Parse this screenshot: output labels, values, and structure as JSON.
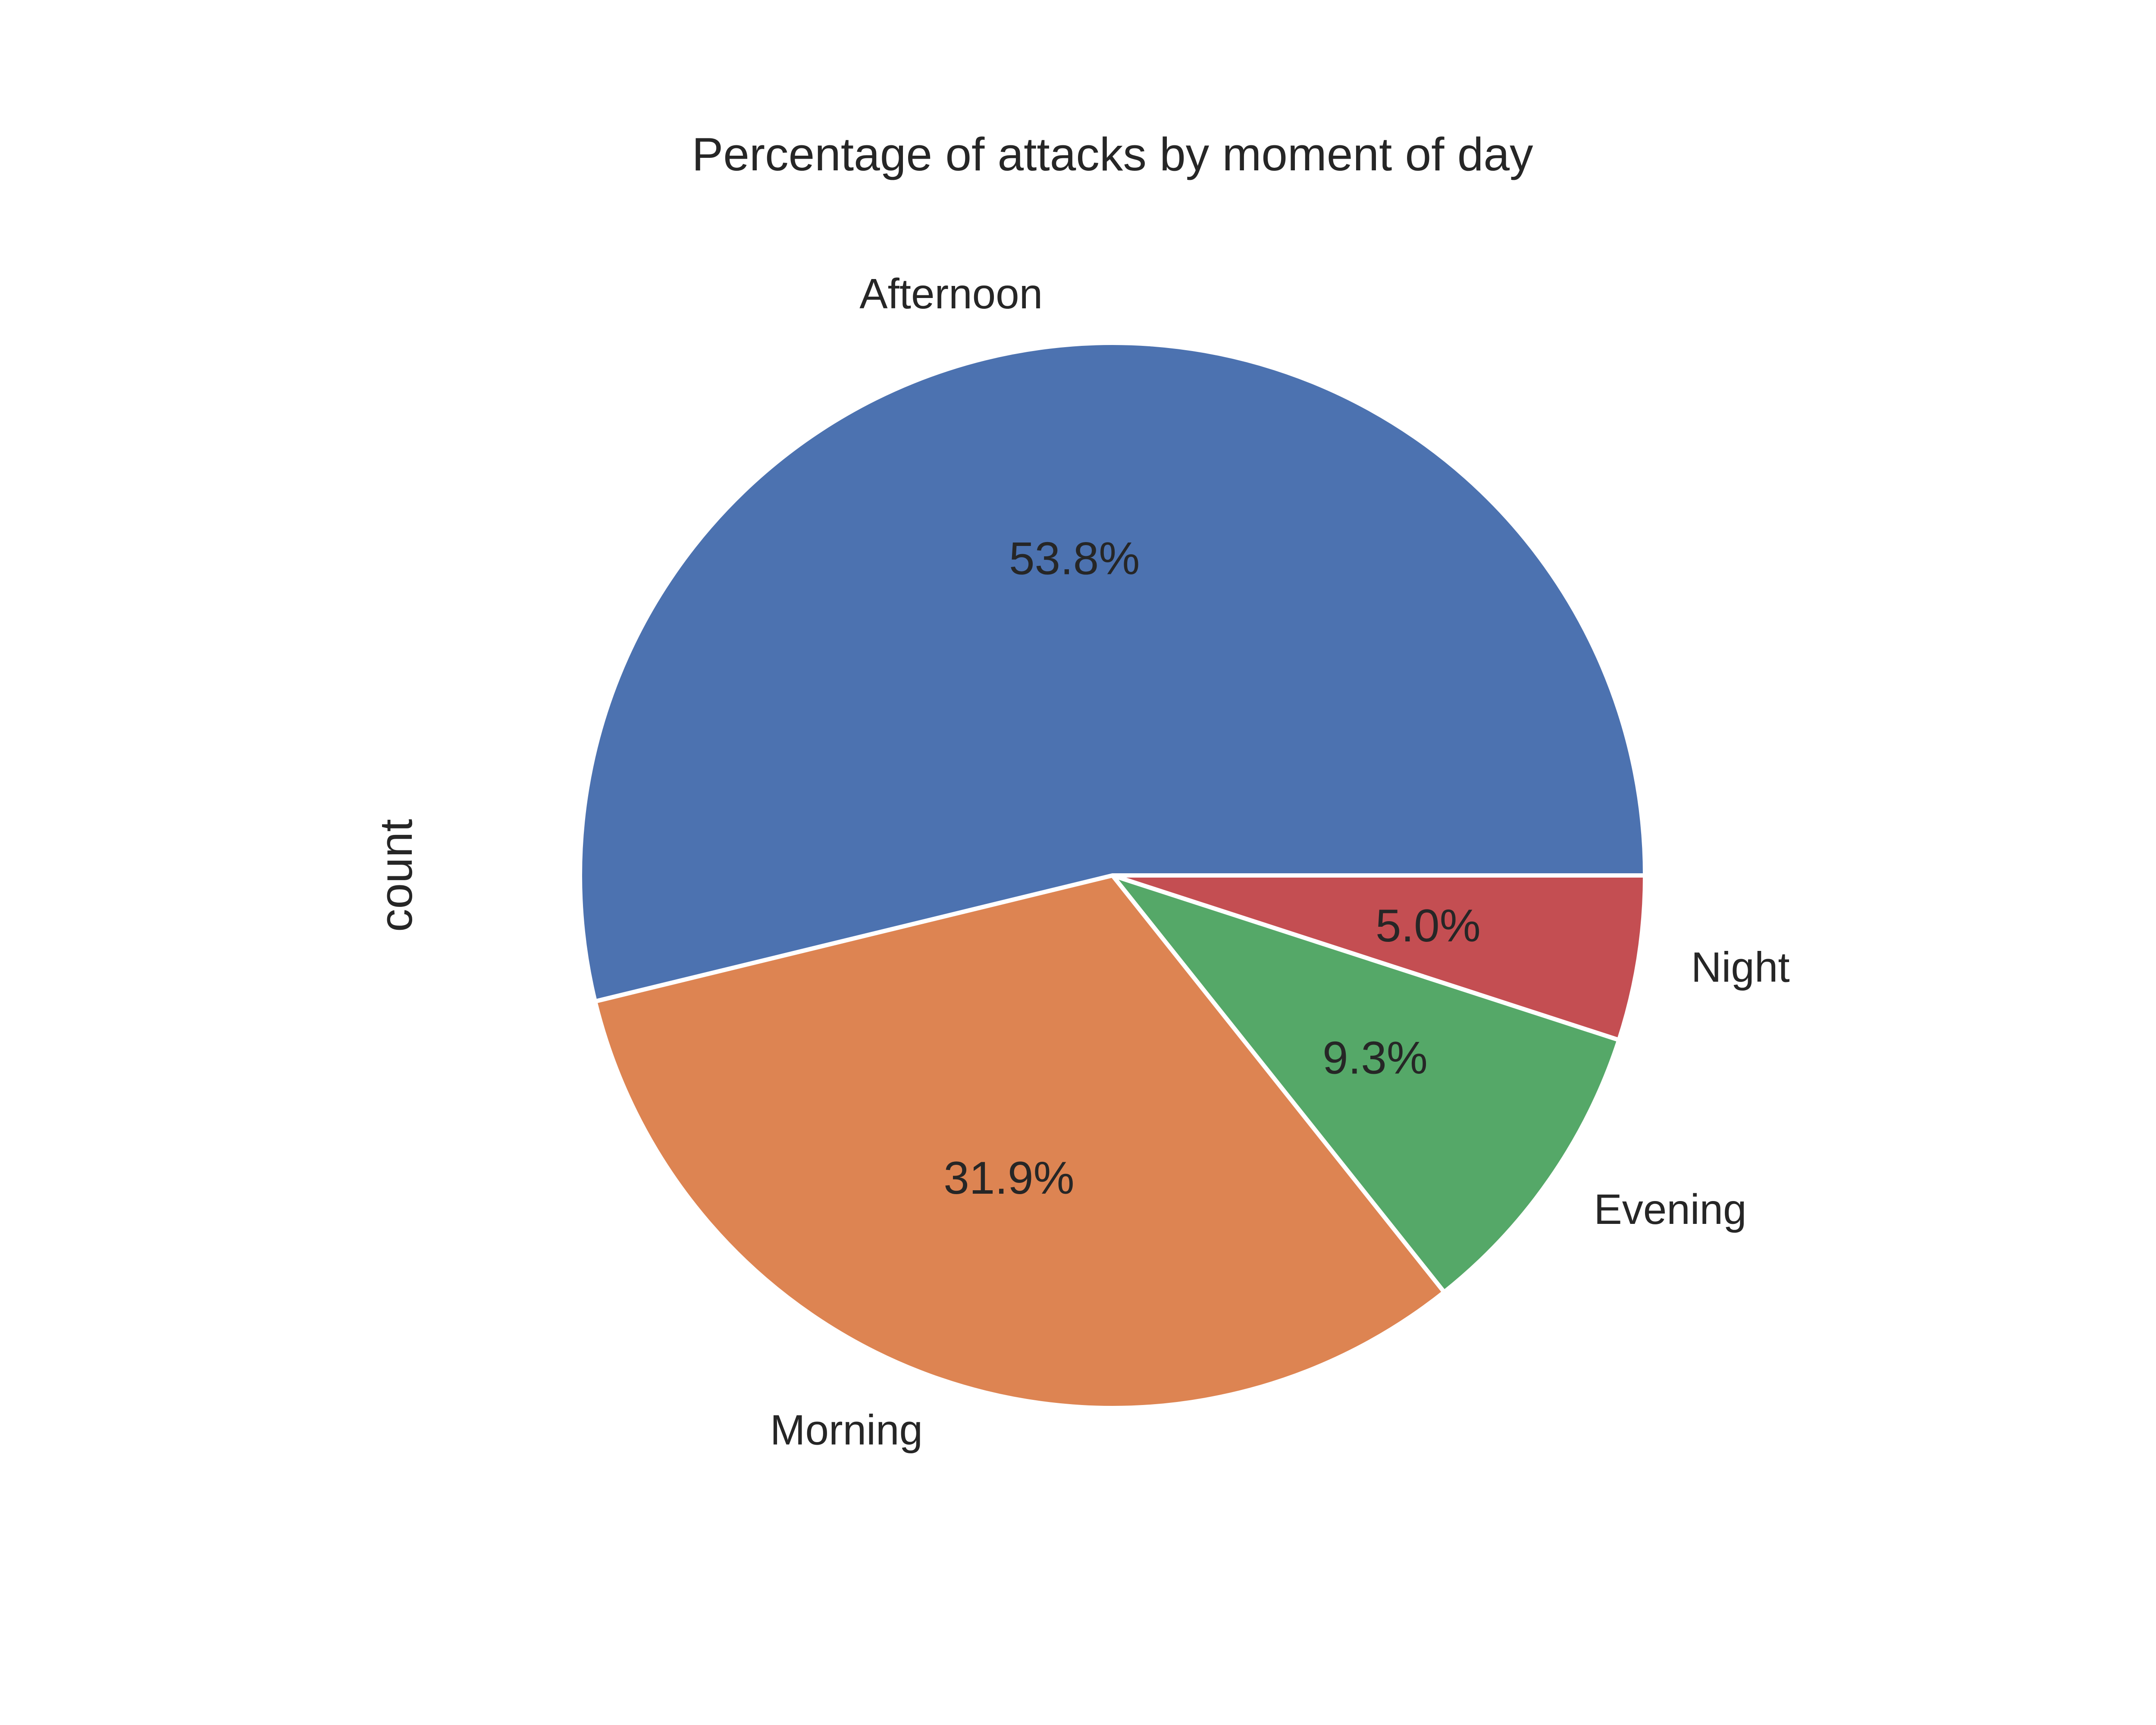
{
  "chart_data": {
    "type": "pie",
    "title": "Percentage of attacks by moment of day",
    "ylabel": "count",
    "slices": [
      {
        "label": "Night",
        "value": 5.0,
        "pct_label": "5.0%",
        "color": "#c44e52"
      },
      {
        "label": "Evening",
        "value": 9.3,
        "pct_label": "9.3%",
        "color": "#55a868"
      },
      {
        "label": "Morning",
        "value": 31.9,
        "pct_label": "31.9%",
        "color": "#dd8452"
      },
      {
        "label": "Afternoon",
        "value": 53.8,
        "pct_label": "53.8%",
        "color": "#4c72b0"
      }
    ],
    "start_angle_deg": 0,
    "direction": "clockwise",
    "legend": "none"
  }
}
